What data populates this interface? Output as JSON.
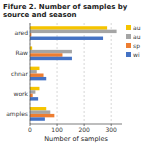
{
  "chart_data": {
    "type": "bar",
    "orientation": "horizontal",
    "title": "Fifure 2. Number of samples by source and season",
    "categories": [
      "amples",
      "work",
      "chnar",
      "Raw",
      "ared"
    ],
    "series": [
      {
        "name": "au",
        "color": "#f5c400",
        "values": [
          60,
          35,
          35,
          8,
          285
        ]
      },
      {
        "name": "au",
        "color": "#a5a5a5",
        "values": [
          75,
          20,
          25,
          155,
          320
        ]
      },
      {
        "name": "sp",
        "color": "#ed7d31",
        "values": [
          90,
          10,
          50,
          120,
          5
        ]
      },
      {
        "name": "wi",
        "color": "#4472c4",
        "values": [
          55,
          30,
          60,
          155,
          270
        ]
      }
    ],
    "xlabel": "Number of samples",
    "xlim": [
      0,
      340
    ],
    "xticks": [
      0,
      100,
      200,
      300
    ],
    "grid": true,
    "legend": "right"
  }
}
